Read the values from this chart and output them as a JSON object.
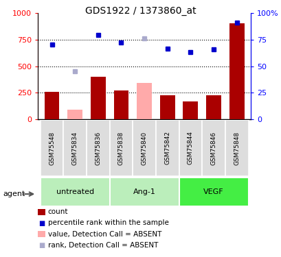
{
  "title": "GDS1922 / 1373860_at",
  "samples": [
    "GSM75548",
    "GSM75834",
    "GSM75836",
    "GSM75838",
    "GSM75840",
    "GSM75842",
    "GSM75844",
    "GSM75846",
    "GSM75848"
  ],
  "bar_values": [
    260,
    90,
    400,
    275,
    340,
    230,
    170,
    225,
    900
  ],
  "bar_absent": [
    false,
    true,
    false,
    false,
    true,
    false,
    false,
    false,
    false
  ],
  "rank_values": [
    70,
    45,
    79,
    72,
    76,
    66.5,
    63,
    65.5,
    91
  ],
  "rank_absent": [
    false,
    true,
    false,
    false,
    true,
    false,
    false,
    false,
    false
  ],
  "bar_color_present": "#aa0000",
  "bar_color_absent": "#ffaaaa",
  "rank_color_present": "#0000cc",
  "rank_color_absent": "#aaaacc",
  "groups": [
    {
      "label": "untreated",
      "indices": [
        0,
        1,
        2
      ],
      "color": "#bbeebb"
    },
    {
      "label": "Ang-1",
      "indices": [
        3,
        4,
        5
      ],
      "color": "#bbeebb"
    },
    {
      "label": "VEGF",
      "indices": [
        6,
        7,
        8
      ],
      "color": "#44ee44"
    }
  ],
  "ylim_left": [
    0,
    1000
  ],
  "ylim_right": [
    0,
    100
  ],
  "yticks_left": [
    0,
    250,
    500,
    750,
    1000
  ],
  "yticks_right": [
    0,
    25,
    50,
    75,
    100
  ],
  "ytick_labels_left": [
    "0",
    "250",
    "500",
    "750",
    "1000"
  ],
  "ytick_labels_right": [
    "0",
    "25",
    "50",
    "75",
    "100%"
  ],
  "grid_lines": [
    250,
    500,
    750
  ],
  "legend_items": [
    {
      "color": "#aa0000",
      "type": "rect",
      "label": "count"
    },
    {
      "color": "#0000cc",
      "type": "square",
      "label": "percentile rank within the sample"
    },
    {
      "color": "#ffaaaa",
      "type": "rect",
      "label": "value, Detection Call = ABSENT"
    },
    {
      "color": "#aaaacc",
      "type": "square",
      "label": "rank, Detection Call = ABSENT"
    }
  ]
}
